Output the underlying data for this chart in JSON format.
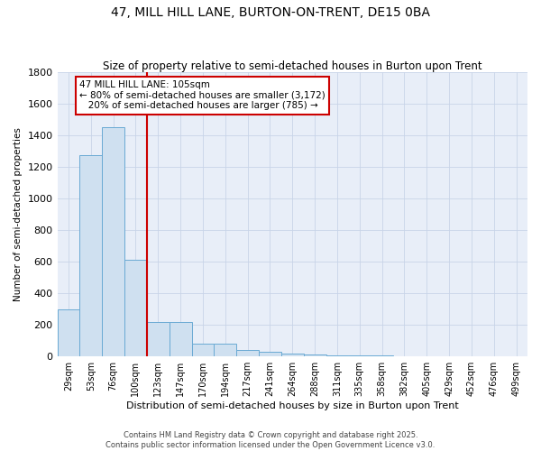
{
  "title": "47, MILL HILL LANE, BURTON-ON-TRENT, DE15 0BA",
  "subtitle": "Size of property relative to semi-detached houses in Burton upon Trent",
  "xlabel": "Distribution of semi-detached houses by size in Burton upon Trent",
  "ylabel": "Number of semi-detached properties",
  "bar_labels": [
    "29sqm",
    "53sqm",
    "76sqm",
    "100sqm",
    "123sqm",
    "147sqm",
    "170sqm",
    "194sqm",
    "217sqm",
    "241sqm",
    "264sqm",
    "288sqm",
    "311sqm",
    "335sqm",
    "358sqm",
    "382sqm",
    "405sqm",
    "429sqm",
    "452sqm",
    "476sqm",
    "499sqm"
  ],
  "bar_values": [
    300,
    1270,
    1450,
    610,
    220,
    220,
    80,
    80,
    40,
    30,
    20,
    15,
    8,
    5,
    5,
    3,
    3,
    3,
    3,
    3,
    3
  ],
  "bar_color": "#cfe0f0",
  "bar_edge_color": "#6aaad4",
  "grid_color": "#c8d4e8",
  "bg_color": "#e8eef8",
  "vline_x": 3.5,
  "vline_color": "#cc0000",
  "annotation_text": "47 MILL HILL LANE: 105sqm\n← 80% of semi-detached houses are smaller (3,172)\n   20% of semi-detached houses are larger (785) →",
  "annotation_box_color": "#cc0000",
  "ylim": [
    0,
    1800
  ],
  "copyright_text": "Contains HM Land Registry data © Crown copyright and database right 2025.\nContains public sector information licensed under the Open Government Licence v3.0.",
  "title_fontsize": 10,
  "subtitle_fontsize": 8.5,
  "annotation_fontsize": 7.5,
  "tick_fontsize": 7,
  "ylabel_fontsize": 7.5,
  "xlabel_fontsize": 8,
  "copyright_fontsize": 6
}
